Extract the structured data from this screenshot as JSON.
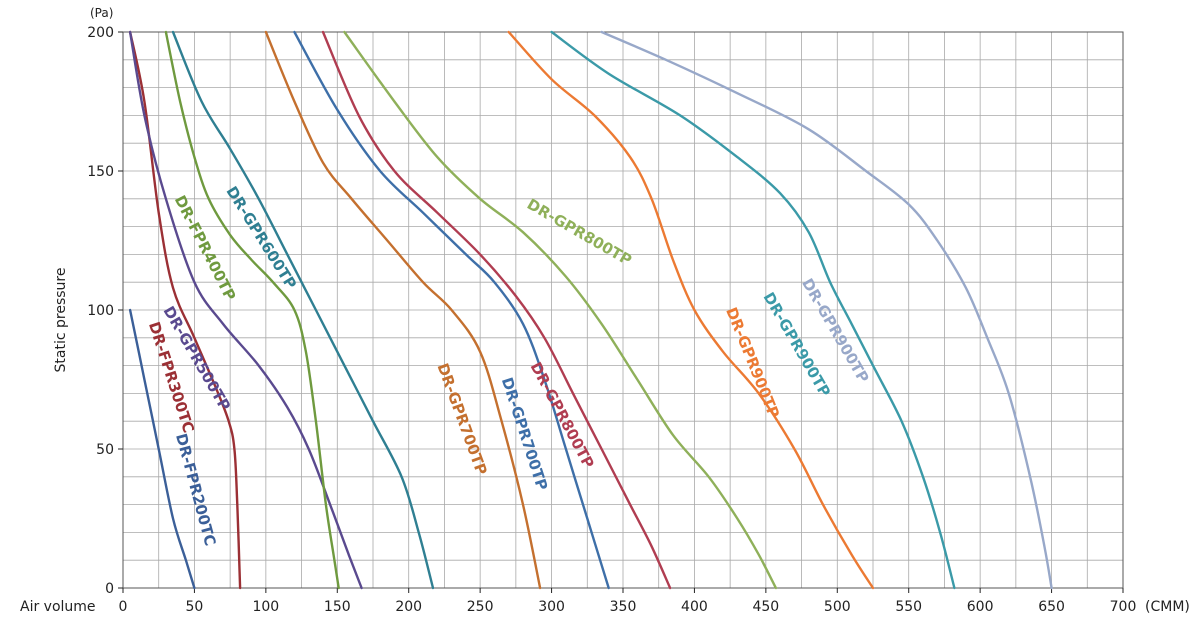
{
  "chart_data": {
    "type": "line",
    "title": "",
    "xlabel": "Air volume",
    "ylabel": "Static pressure",
    "x_unit": "(CMM)",
    "y_unit": "(Pa)",
    "xlim": [
      0,
      700
    ],
    "ylim": [
      0,
      200
    ],
    "x_ticks": [
      0,
      50,
      100,
      150,
      200,
      250,
      300,
      350,
      400,
      450,
      500,
      550,
      600,
      650,
      700
    ],
    "y_ticks": [
      0,
      50,
      100,
      150,
      200
    ],
    "grid": true,
    "series": [
      {
        "name": "DR-FPR200TC",
        "color": "#3b5f98",
        "points": [
          [
            5,
            100
          ],
          [
            15,
            75
          ],
          [
            25,
            50
          ],
          [
            35,
            25
          ],
          [
            44,
            10
          ],
          [
            50,
            0
          ]
        ]
      },
      {
        "name": "DR-FPR300TC",
        "color": "#9b3035",
        "points": [
          [
            5,
            200
          ],
          [
            15,
            175
          ],
          [
            25,
            135
          ],
          [
            35,
            108
          ],
          [
            50,
            90
          ],
          [
            65,
            72
          ],
          [
            74,
            60
          ],
          [
            78,
            50
          ],
          [
            80,
            30
          ],
          [
            82,
            0
          ]
        ]
      },
      {
        "name": "DR-GPR500TP",
        "color": "#5a4a8f",
        "points": [
          [
            5,
            200
          ],
          [
            15,
            170
          ],
          [
            30,
            140
          ],
          [
            50,
            110
          ],
          [
            70,
            95
          ],
          [
            95,
            80
          ],
          [
            115,
            65
          ],
          [
            130,
            50
          ],
          [
            145,
            30
          ],
          [
            158,
            12
          ],
          [
            167,
            0
          ]
        ]
      },
      {
        "name": "DR-FPR400TP",
        "color": "#6f9a3f",
        "points": [
          [
            30,
            200
          ],
          [
            40,
            175
          ],
          [
            50,
            155
          ],
          [
            60,
            140
          ],
          [
            75,
            127
          ],
          [
            90,
            118
          ],
          [
            105,
            110
          ],
          [
            120,
            100
          ],
          [
            128,
            85
          ],
          [
            135,
            60
          ],
          [
            142,
            30
          ],
          [
            148,
            10
          ],
          [
            151,
            0
          ]
        ]
      },
      {
        "name": "DR-GPR600TP",
        "color": "#2f7f92",
        "points": [
          [
            35,
            200
          ],
          [
            55,
            175
          ],
          [
            75,
            158
          ],
          [
            95,
            140
          ],
          [
            115,
            120
          ],
          [
            135,
            100
          ],
          [
            155,
            80
          ],
          [
            175,
            60
          ],
          [
            195,
            40
          ],
          [
            207,
            20
          ],
          [
            217,
            0
          ]
        ]
      },
      {
        "name": "DR-GPR700TP",
        "color": "#c4702f",
        "points": [
          [
            100,
            200
          ],
          [
            120,
            175
          ],
          [
            140,
            153
          ],
          [
            160,
            140
          ],
          [
            185,
            125
          ],
          [
            210,
            110
          ],
          [
            230,
            100
          ],
          [
            250,
            85
          ],
          [
            265,
            60
          ],
          [
            280,
            30
          ],
          [
            292,
            0
          ]
        ]
      },
      {
        "name": "DR-GPR700TP",
        "color": "#3e6fa8",
        "points": [
          [
            120,
            200
          ],
          [
            150,
            172
          ],
          [
            180,
            150
          ],
          [
            210,
            135
          ],
          [
            240,
            120
          ],
          [
            260,
            110
          ],
          [
            280,
            95
          ],
          [
            295,
            75
          ],
          [
            310,
            50
          ],
          [
            325,
            25
          ],
          [
            340,
            0
          ]
        ]
      },
      {
        "name": "DR-GPR800TP",
        "color": "#b03d51",
        "points": [
          [
            140,
            200
          ],
          [
            165,
            170
          ],
          [
            190,
            150
          ],
          [
            220,
            135
          ],
          [
            250,
            120
          ],
          [
            275,
            105
          ],
          [
            295,
            90
          ],
          [
            315,
            70
          ],
          [
            335,
            50
          ],
          [
            355,
            30
          ],
          [
            370,
            15
          ],
          [
            383,
            0
          ]
        ]
      },
      {
        "name": "DR-GPR800TP",
        "color": "#8fb05a",
        "points": [
          [
            155,
            200
          ],
          [
            190,
            175
          ],
          [
            220,
            155
          ],
          [
            250,
            140
          ],
          [
            280,
            128
          ],
          [
            310,
            112
          ],
          [
            335,
            95
          ],
          [
            360,
            75
          ],
          [
            385,
            55
          ],
          [
            410,
            40
          ],
          [
            430,
            25
          ],
          [
            445,
            12
          ],
          [
            457,
            0
          ]
        ]
      },
      {
        "name": "DR-GPR900TP",
        "color": "#ec7a33",
        "points": [
          [
            270,
            200
          ],
          [
            300,
            183
          ],
          [
            330,
            170
          ],
          [
            355,
            155
          ],
          [
            370,
            140
          ],
          [
            385,
            118
          ],
          [
            400,
            100
          ],
          [
            420,
            85
          ],
          [
            445,
            70
          ],
          [
            470,
            50
          ],
          [
            490,
            30
          ],
          [
            510,
            12
          ],
          [
            525,
            0
          ]
        ]
      },
      {
        "name": "DR-GPR900TP",
        "color": "#3b9aa8",
        "points": [
          [
            300,
            200
          ],
          [
            340,
            185
          ],
          [
            390,
            170
          ],
          [
            430,
            155
          ],
          [
            460,
            142
          ],
          [
            480,
            128
          ],
          [
            495,
            110
          ],
          [
            510,
            95
          ],
          [
            525,
            80
          ],
          [
            545,
            60
          ],
          [
            560,
            40
          ],
          [
            572,
            20
          ],
          [
            582,
            0
          ]
        ]
      },
      {
        "name": "DR-GPR900TP",
        "color": "#98a8c9",
        "points": [
          [
            335,
            200
          ],
          [
            380,
            190
          ],
          [
            430,
            178
          ],
          [
            480,
            165
          ],
          [
            520,
            150
          ],
          [
            550,
            138
          ],
          [
            570,
            125
          ],
          [
            590,
            108
          ],
          [
            605,
            90
          ],
          [
            620,
            70
          ],
          [
            635,
            40
          ],
          [
            645,
            15
          ],
          [
            650,
            0
          ]
        ]
      }
    ],
    "labels": [
      {
        "text": "DR-FPR200TC",
        "series": 0
      },
      {
        "text": "DR-FPR300TC",
        "series": 1
      },
      {
        "text": "DR-GPR500TP",
        "series": 2
      },
      {
        "text": "DR-FPR400TP",
        "series": 3
      },
      {
        "text": "DR-GPR600TP",
        "series": 4
      },
      {
        "text": "DR-GPR700TP",
        "series": 5
      },
      {
        "text": "DR-GPR700TP",
        "series": 6
      },
      {
        "text": "DR-GPR800TP",
        "series": 7
      },
      {
        "text": "DR-GPR800TP",
        "series": 8
      },
      {
        "text": "DR-GPR900TP",
        "series": 9
      },
      {
        "text": "DR-GPR900TP",
        "series": 10
      },
      {
        "text": "DR-GPR900TP",
        "series": 11
      }
    ]
  }
}
